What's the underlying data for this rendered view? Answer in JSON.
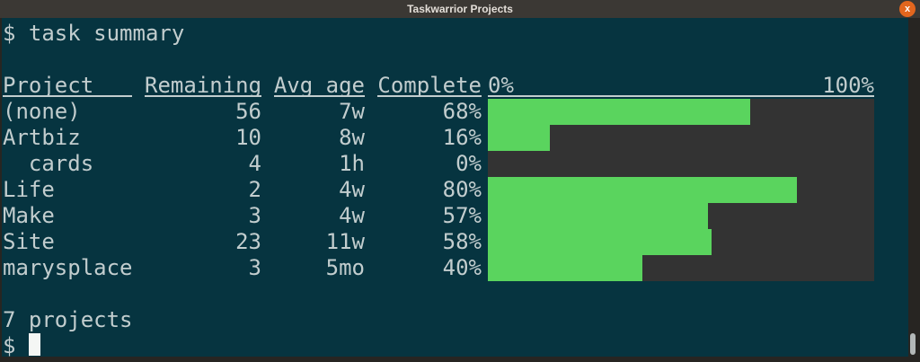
{
  "window": {
    "title": "Taskwarrior Projects",
    "close_label": "x"
  },
  "terminal": {
    "command_line": "$ task summary",
    "prompt": "$ ",
    "header": {
      "project": "Project",
      "remaining": "Remaining",
      "avg_age": "Avg age",
      "complete": "Complete",
      "bar_start": "0%",
      "bar_end": "100%"
    },
    "rows": [
      {
        "project": "(none)",
        "remaining": "56",
        "avg_age": "7w",
        "complete": "68%",
        "pct": 68
      },
      {
        "project": "Artbiz",
        "remaining": "10",
        "avg_age": "8w",
        "complete": "16%",
        "pct": 16
      },
      {
        "project": "  cards",
        "remaining": "4",
        "avg_age": "1h",
        "complete": "0%",
        "pct": 0
      },
      {
        "project": "Life",
        "remaining": "2",
        "avg_age": "4w",
        "complete": "80%",
        "pct": 80
      },
      {
        "project": "Make",
        "remaining": "3",
        "avg_age": "4w",
        "complete": "57%",
        "pct": 57
      },
      {
        "project": "Site",
        "remaining": "23",
        "avg_age": "11w",
        "complete": "58%",
        "pct": 58
      },
      {
        "project": "marysplace",
        "remaining": "3",
        "avg_age": "5mo",
        "complete": "40%",
        "pct": 40
      }
    ],
    "footer": "7 projects"
  },
  "colors": {
    "background": "#063440",
    "text": "#c2cdce",
    "bar_fill": "#5ad45e",
    "bar_track": "#333333",
    "titlebar": "#3b3834",
    "close_button": "#e2661e",
    "frame": "#272522"
  }
}
